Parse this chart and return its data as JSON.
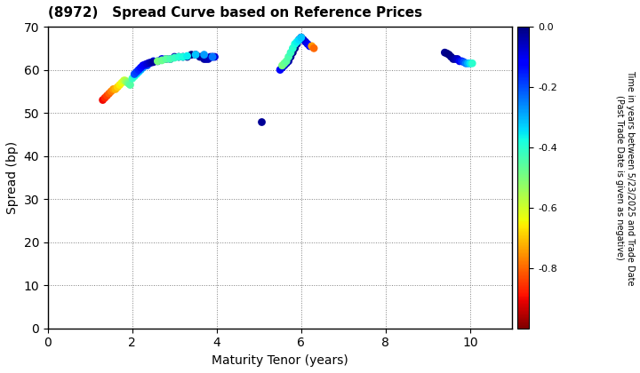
{
  "title": "(8972)   Spread Curve based on Reference Prices",
  "xlabel": "Maturity Tenor (years)",
  "ylabel": "Spread (bp)",
  "colorbar_label": "Time in years between 5/23/2025 and Trade Date\n(Past Trade Date is given as negative)",
  "xlim": [
    0,
    11
  ],
  "ylim": [
    0,
    70
  ],
  "xticks": [
    0,
    2,
    4,
    6,
    8,
    10
  ],
  "yticks": [
    0,
    10,
    20,
    30,
    40,
    50,
    60,
    70
  ],
  "cmap": "jet_r",
  "clim": [
    -1.0,
    0.0
  ],
  "cluster1": {
    "maturity": [
      1.3,
      1.35,
      1.4,
      1.45,
      1.5,
      1.55,
      1.6,
      1.65,
      1.7,
      1.75,
      1.8,
      1.83,
      1.86,
      1.89,
      1.92,
      1.95,
      2.0,
      2.05,
      2.1,
      2.15,
      2.2,
      2.25,
      2.3,
      2.35,
      2.4,
      2.5,
      2.6,
      2.7,
      2.8,
      2.9,
      3.0,
      3.1,
      3.2,
      3.3,
      3.4,
      3.5,
      3.6,
      3.7,
      3.75,
      3.8,
      3.85,
      3.9,
      3.95,
      2.05,
      2.1,
      2.15,
      2.2,
      2.25,
      2.3,
      2.35,
      2.4,
      2.45,
      2.5,
      2.6,
      2.7,
      2.8,
      2.9,
      3.0,
      3.1,
      3.2,
      3.3,
      3.5,
      3.7,
      3.9
    ],
    "spread": [
      53,
      53.5,
      54,
      54.5,
      55,
      55.5,
      55.5,
      56,
      56.5,
      57,
      57.5,
      57.5,
      57.2,
      57.0,
      56.8,
      56.5,
      58,
      58.5,
      59,
      59.5,
      60,
      60.5,
      61,
      61,
      61.5,
      62,
      62,
      62.5,
      62.5,
      62.5,
      63,
      63,
      63,
      63,
      63.5,
      63.5,
      63,
      62.5,
      62.5,
      62.5,
      63,
      63,
      63,
      59,
      59.5,
      60,
      60.5,
      61,
      61.2,
      61.4,
      61.6,
      61.7,
      61.8,
      62,
      62.2,
      62.5,
      62.5,
      62.8,
      63,
      63,
      63.2,
      63.5,
      63.5,
      63
    ],
    "time": [
      -0.9,
      -0.87,
      -0.84,
      -0.81,
      -0.78,
      -0.75,
      -0.72,
      -0.69,
      -0.66,
      -0.63,
      -0.6,
      -0.57,
      -0.54,
      -0.51,
      -0.48,
      -0.45,
      -0.42,
      -0.39,
      -0.36,
      -0.33,
      -0.3,
      -0.27,
      -0.24,
      -0.21,
      -0.18,
      -0.15,
      -0.12,
      -0.09,
      -0.07,
      -0.05,
      -0.04,
      -0.03,
      -0.02,
      -0.01,
      0.0,
      -0.01,
      -0.02,
      -0.03,
      -0.04,
      -0.05,
      -0.06,
      -0.07,
      -0.08,
      -0.2,
      -0.18,
      -0.16,
      -0.14,
      -0.12,
      -0.1,
      -0.08,
      -0.06,
      -0.04,
      -0.02,
      -0.5,
      -0.48,
      -0.46,
      -0.44,
      -0.42,
      -0.4,
      -0.38,
      -0.36,
      -0.32,
      -0.28,
      -0.24
    ]
  },
  "cluster2_outlier": {
    "maturity": [
      5.05
    ],
    "spread": [
      48
    ],
    "time": [
      -0.02
    ]
  },
  "cluster2": {
    "maturity": [
      5.5,
      5.55,
      5.6,
      5.65,
      5.7,
      5.75,
      5.8,
      5.85,
      5.9,
      5.95,
      6.0,
      6.05,
      6.1,
      6.15,
      6.2,
      6.25,
      6.3,
      5.55,
      5.6,
      5.65,
      5.7,
      5.75,
      5.8,
      5.85,
      5.9,
      5.95,
      6.0
    ],
    "spread": [
      60,
      60.5,
      61,
      61.5,
      62,
      63,
      64,
      65,
      66,
      67,
      67.5,
      67,
      66.5,
      66,
      65.5,
      65.5,
      65,
      61,
      61.5,
      62,
      63,
      64,
      65,
      66,
      66.5,
      67,
      67.5
    ],
    "time": [
      -0.12,
      -0.1,
      -0.08,
      -0.06,
      -0.04,
      -0.02,
      -0.01,
      0.0,
      -0.01,
      -0.02,
      -0.04,
      -0.06,
      -0.08,
      -0.1,
      -0.12,
      -0.75,
      -0.8,
      -0.5,
      -0.48,
      -0.46,
      -0.44,
      -0.42,
      -0.4,
      -0.38,
      -0.36,
      -0.34,
      -0.32
    ]
  },
  "cluster3": {
    "maturity": [
      9.4,
      9.45,
      9.5,
      9.55,
      9.6,
      9.65,
      9.7,
      9.75,
      9.8,
      9.85,
      9.9,
      9.95,
      10.0,
      10.05
    ],
    "spread": [
      64,
      63.8,
      63.5,
      63.0,
      62.5,
      62.5,
      62.5,
      62.0,
      62.0,
      61.8,
      61.5,
      61.5,
      61.5,
      61.5
    ],
    "time": [
      -0.02,
      -0.01,
      0.0,
      -0.01,
      -0.02,
      -0.04,
      -0.06,
      -0.1,
      -0.15,
      -0.2,
      -0.25,
      -0.3,
      -0.35,
      -0.4
    ]
  }
}
